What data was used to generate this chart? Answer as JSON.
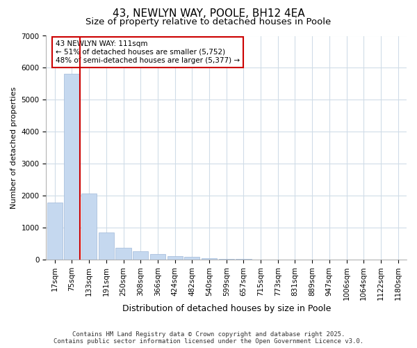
{
  "title": "43, NEWLYN WAY, POOLE, BH12 4EA",
  "subtitle": "Size of property relative to detached houses in Poole",
  "xlabel": "Distribution of detached houses by size in Poole",
  "ylabel": "Number of detached properties",
  "categories": [
    "17sqm",
    "75sqm",
    "133sqm",
    "191sqm",
    "250sqm",
    "308sqm",
    "366sqm",
    "424sqm",
    "482sqm",
    "540sqm",
    "599sqm",
    "657sqm",
    "715sqm",
    "773sqm",
    "831sqm",
    "889sqm",
    "947sqm",
    "1006sqm",
    "1064sqm",
    "1122sqm",
    "1180sqm"
  ],
  "values": [
    1780,
    5820,
    2070,
    840,
    370,
    250,
    175,
    115,
    85,
    45,
    25,
    12,
    6,
    2,
    1,
    0,
    0,
    0,
    0,
    0,
    0
  ],
  "bar_color": "#c5d8ef",
  "bar_edge_color": "#a0b8d8",
  "vline_x_index": 1,
  "vline_color": "#cc0000",
  "annotation_title": "43 NEWLYN WAY: 111sqm",
  "annotation_line1": "← 51% of detached houses are smaller (5,752)",
  "annotation_line2": "48% of semi-detached houses are larger (5,377) →",
  "annotation_box_color": "#cc0000",
  "background_color": "#ffffff",
  "plot_bg_color": "#ffffff",
  "grid_color": "#d0dce8",
  "ylim": [
    0,
    7000
  ],
  "yticks": [
    0,
    1000,
    2000,
    3000,
    4000,
    5000,
    6000,
    7000
  ],
  "footer_line1": "Contains HM Land Registry data © Crown copyright and database right 2025.",
  "footer_line2": "Contains public sector information licensed under the Open Government Licence v3.0.",
  "title_fontsize": 11,
  "subtitle_fontsize": 9.5,
  "xlabel_fontsize": 9,
  "ylabel_fontsize": 8,
  "tick_fontsize": 7.5,
  "footer_fontsize": 6.5
}
